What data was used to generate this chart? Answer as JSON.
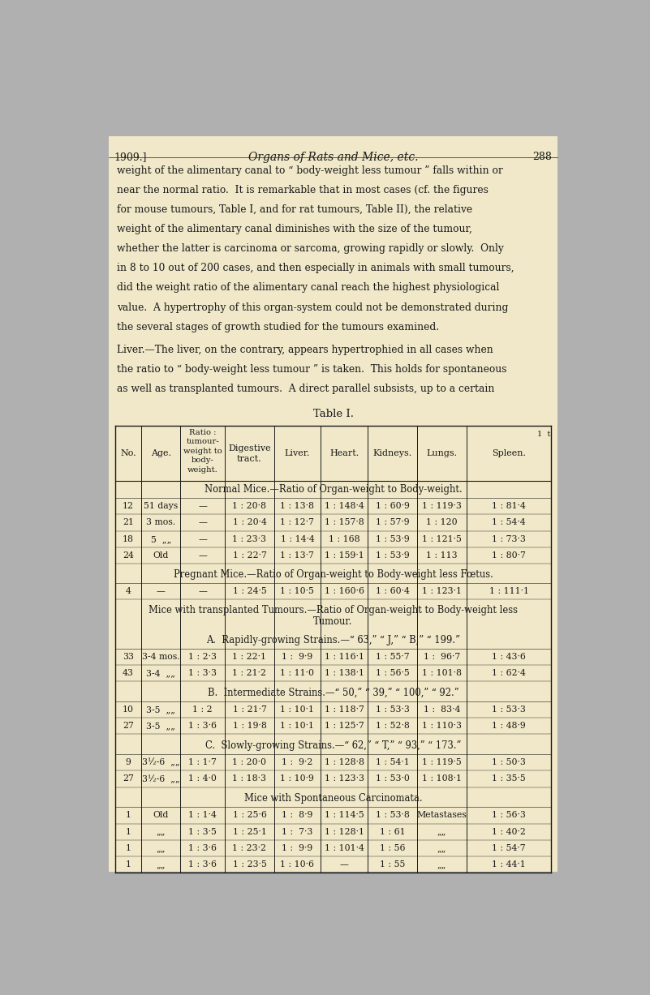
{
  "page_bg": "#f0e8c8",
  "outer_bg": "#b0b0b0",
  "text_color": "#1a1a1a",
  "page_number_left": "1909.]",
  "page_title_center": "Organs of Rats and Mice, etc.",
  "page_number_right": "288",
  "body_text": [
    "weight of the alimentary canal to “ body-weight less tumour ” falls within or",
    "near the normal ratio.  It is remarkable that in most cases (cf. the figures",
    "for mouse tumours, Table I, and for rat tumours, Table II), the relative",
    "weight of the alimentary canal diminishes with the size of the tumour,",
    "whether the latter is carcinoma or sarcoma, growing rapidly or slowly.  Only",
    "in 8 to 10 out of 200 cases, and then especially in animals with small tumours,",
    "did the weight ratio of the alimentary canal reach the highest physiological",
    "value.  A hypertrophy of this organ-system could not be demonstrated during",
    "the several stages of growth studied for the tumours examined."
  ],
  "liver_text": [
    "Liver.—The liver, on the contrary, appears hypertrophied in all cases when",
    "the ratio to “ body-weight less tumour ” is taken.  This holds for spontaneous",
    "as well as transplanted tumours.  A direct parallel subsists, up to a certain"
  ],
  "table_title": "Table I.",
  "section1_header": "Normal Mice.—Ratio of Organ-weight to Body-weight.",
  "section1_rows": [
    [
      "12",
      "51 days",
      "—",
      "1 : 20·8",
      "1 : 13·8",
      "1 : 148·4",
      "1 : 60·9",
      "1 : 119·3",
      "1 : 81·4"
    ],
    [
      "21",
      "3 mos.",
      "—",
      "1 : 20·4",
      "1 : 12·7",
      "1 : 157·8",
      "1 : 57·9",
      "1 : 120",
      "1 : 54·4"
    ],
    [
      "18",
      "5  „„",
      "—",
      "1 : 23·3",
      "1 : 14·4",
      "1 : 168",
      "1 : 53·9",
      "1 : 121·5",
      "1 : 73·3"
    ],
    [
      "24",
      "Old",
      "—",
      "1 : 22·7",
      "1 : 13·7",
      "1 : 159·1",
      "1 : 53·9",
      "1 : 113",
      "1 : 80·7"
    ]
  ],
  "section2_header": "Pregnant Mice.—Ratio of Organ-weight to Body-weight less Fœtus.",
  "section2_rows": [
    [
      "4",
      "—",
      "—",
      "1 : 24·5",
      "1 : 10·5",
      "1 : 160·6",
      "1 : 60·4",
      "1 : 123·1",
      "1 : 111·1"
    ]
  ],
  "section3_header1": "Mice with transplanted Tumours.—Ratio of Organ-weight to Body-weight less",
  "section3_header2": "Tumour.",
  "section3a_header": "A.  Rapidly-growing Strains.—“ 63,” “ J,” “ B,” “ 199.”",
  "section3a_rows": [
    [
      "33",
      "3-4 mos.",
      "1 : 2·3",
      "1 : 22·1",
      "1 :  9·9",
      "1 : 116·1",
      "1 : 55·7",
      "1 :  96·7",
      "1 : 43·6"
    ],
    [
      "43",
      "3-4  „„",
      "1 : 3·3",
      "1 : 21·2",
      "1 : 11·0",
      "1 : 138·1",
      "1 : 56·5",
      "1 : 101·8",
      "1 : 62·4"
    ]
  ],
  "section3b_header": "B.  Intermediate Strains.—“ 50,” “ 39,” “ 100,” “ 92.”",
  "section3b_rows": [
    [
      "10",
      "3-5  „„",
      "1 : 2",
      "1 : 21·7",
      "1 : 10·1",
      "1 : 118·7",
      "1 : 53·3",
      "1 :  83·4",
      "1 : 53·3"
    ],
    [
      "27",
      "3-5  „„",
      "1 : 3·6",
      "1 : 19·8",
      "1 : 10·1",
      "1 : 125·7",
      "1 : 52·8",
      "1 : 110·3",
      "1 : 48·9"
    ]
  ],
  "section3c_header": "C.  Slowly-growing Strains.—“ 62,” “ T,” “ 93,” “ 173.”",
  "section3c_rows": [
    [
      "9",
      "3½-6  „„",
      "1 : 1·7",
      "1 : 20·0",
      "1 :  9·2",
      "1 : 128·8",
      "1 : 54·1",
      "1 : 119·5",
      "1 : 50·3"
    ],
    [
      "27",
      "3½-6  „„",
      "1 : 4·0",
      "1 : 18·3",
      "1 : 10·9",
      "1 : 123·3",
      "1 : 53·0",
      "1 : 108·1",
      "1 : 35·5"
    ]
  ],
  "section4_header": "Mice with Spontaneous Carcinomata.",
  "section4_rows": [
    [
      "1",
      "Old",
      "1 : 1·4",
      "1 : 25·6",
      "1 :  8·9",
      "1 : 114·5",
      "1 : 53·8",
      "Metastases",
      "1 : 56·3"
    ],
    [
      "1",
      "„„",
      "1 : 3·5",
      "1 : 25·1",
      "1 :  7·3",
      "1 : 128·1",
      "1 : 61",
      "„„",
      "1 : 40·2"
    ],
    [
      "1",
      "„„",
      "1 : 3·6",
      "1 : 23·2",
      "1 :  9·9",
      "1 : 101·4",
      "1 : 56",
      "„„",
      "1 : 54·7"
    ],
    [
      "1",
      "„„",
      "1 : 3·6",
      "1 : 23·5",
      "1 : 10·6",
      "—",
      "1 : 55",
      "„„",
      "1 : 44·1"
    ]
  ]
}
